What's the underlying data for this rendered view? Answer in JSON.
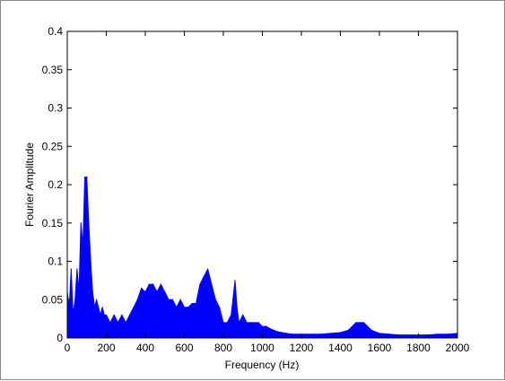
{
  "chart_data": {
    "type": "line",
    "title": "",
    "xlabel": "Frequency (Hz)",
    "ylabel": "Fourier Amplitude",
    "xlim": [
      0,
      2000
    ],
    "ylim": [
      0,
      0.4
    ],
    "grid": false,
    "x_ticks": [
      "0",
      "200",
      "400",
      "600",
      "800",
      "1000",
      "1200",
      "1400",
      "1600",
      "1800",
      "2000"
    ],
    "y_ticks": [
      "0",
      "0.05",
      "0.1",
      "0.15",
      "0.2",
      "0.25",
      "0.3",
      "0.35",
      "0.4"
    ],
    "series": [
      {
        "color": "#0000ff",
        "x": [
          0,
          10,
          20,
          30,
          40,
          50,
          60,
          70,
          80,
          90,
          100,
          110,
          120,
          130,
          140,
          150,
          160,
          170,
          180,
          190,
          200,
          220,
          240,
          260,
          280,
          300,
          320,
          340,
          360,
          380,
          400,
          420,
          440,
          460,
          480,
          500,
          520,
          540,
          560,
          580,
          600,
          620,
          640,
          660,
          680,
          700,
          720,
          740,
          760,
          780,
          800,
          820,
          840,
          860,
          870,
          880,
          900,
          920,
          940,
          960,
          980,
          1000,
          1020,
          1040,
          1060,
          1080,
          1100,
          1150,
          1200,
          1250,
          1300,
          1350,
          1400,
          1440,
          1460,
          1480,
          1500,
          1520,
          1540,
          1560,
          1600,
          1650,
          1700,
          1750,
          1800,
          1850,
          1900,
          1950,
          2000
        ],
        "values": [
          0.06,
          0.04,
          0.09,
          0.03,
          0.05,
          0.09,
          0.06,
          0.15,
          0.12,
          0.21,
          0.21,
          0.15,
          0.1,
          0.06,
          0.04,
          0.05,
          0.04,
          0.03,
          0.04,
          0.03,
          0.03,
          0.02,
          0.03,
          0.02,
          0.03,
          0.02,
          0.03,
          0.04,
          0.05,
          0.065,
          0.06,
          0.07,
          0.07,
          0.06,
          0.07,
          0.06,
          0.05,
          0.05,
          0.04,
          0.05,
          0.04,
          0.04,
          0.045,
          0.045,
          0.07,
          0.08,
          0.09,
          0.07,
          0.05,
          0.04,
          0.02,
          0.02,
          0.03,
          0.075,
          0.04,
          0.02,
          0.03,
          0.02,
          0.02,
          0.02,
          0.02,
          0.015,
          0.015,
          0.012,
          0.01,
          0.008,
          0.007,
          0.005,
          0.005,
          0.005,
          0.005,
          0.006,
          0.007,
          0.01,
          0.015,
          0.02,
          0.02,
          0.02,
          0.015,
          0.01,
          0.006,
          0.005,
          0.004,
          0.004,
          0.004,
          0.004,
          0.005,
          0.005,
          0.006
        ]
      }
    ]
  }
}
